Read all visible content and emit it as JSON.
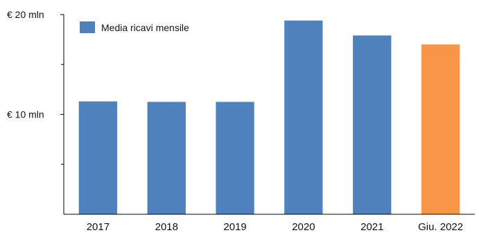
{
  "chart_data": {
    "type": "bar",
    "categories": [
      "2017",
      "2018",
      "2019",
      "2020",
      "2021",
      "Giu. 2022"
    ],
    "series": [
      {
        "name": "Media ricavi mensile",
        "values": [
          11.3,
          11.25,
          11.25,
          19.4,
          17.9,
          17.0
        ],
        "colors": [
          "#4f81bd",
          "#4f81bd",
          "#4f81bd",
          "#4f81bd",
          "#4f81bd",
          "#f79646"
        ]
      }
    ],
    "title": "",
    "xlabel": "",
    "ylabel": "",
    "ylim": [
      0,
      20
    ],
    "yticks": [
      {
        "value": 10,
        "label": "€ 10 mln"
      },
      {
        "value": 20,
        "label": "€ 20 mln"
      }
    ],
    "minor_ticks": [
      5,
      15
    ],
    "grid": false,
    "legend": {
      "position": "top-left",
      "label": "Media ricavi mensile",
      "color": "#4f81bd"
    }
  }
}
